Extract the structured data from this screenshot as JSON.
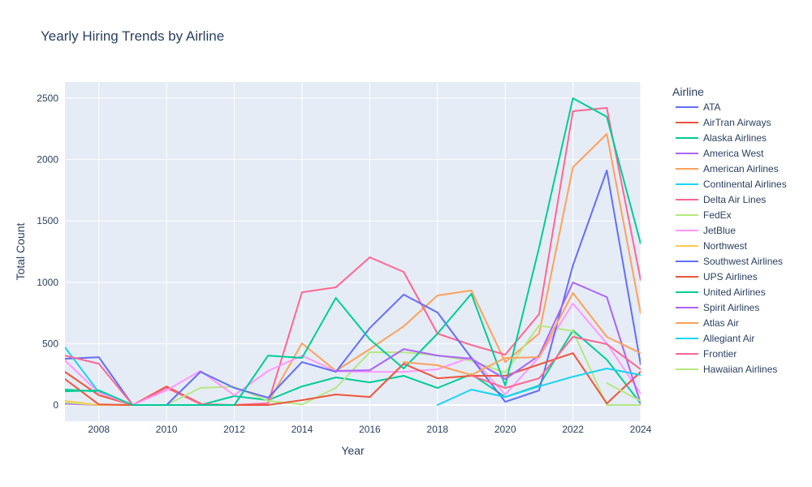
{
  "chart_data": {
    "type": "line",
    "title": "Yearly Hiring Trends by Airline",
    "xlabel": "Year",
    "ylabel": "Total Count",
    "legend_title": "Airline",
    "legend_position": "right",
    "grid": true,
    "xlim": [
      2007,
      2024
    ],
    "ylim": [
      -132,
      2632
    ],
    "x_ticks": [
      2008,
      2010,
      2012,
      2014,
      2016,
      2018,
      2020,
      2022,
      2024
    ],
    "y_ticks": [
      0,
      500,
      1000,
      1500,
      2000,
      2500
    ],
    "x": [
      2007,
      2008,
      2009,
      2010,
      2011,
      2012,
      2013,
      2014,
      2015,
      2016,
      2017,
      2018,
      2019,
      2020,
      2021,
      2022,
      2023,
      2024
    ],
    "series": [
      {
        "name": "ATA",
        "color": "#636efa",
        "values": [
          377,
          390,
          0,
          null,
          null,
          null,
          null,
          null,
          null,
          null,
          null,
          null,
          null,
          null,
          null,
          null,
          null,
          null
        ]
      },
      {
        "name": "AirTran Airways",
        "color": "#EF553B",
        "values": [
          271,
          80,
          0,
          152,
          13,
          null,
          null,
          null,
          null,
          null,
          null,
          null,
          null,
          null,
          null,
          null,
          null,
          null
        ]
      },
      {
        "name": "Alaska Airlines",
        "color": "#00cc96",
        "values": [
          126,
          110,
          0,
          0,
          0,
          73,
          40,
          152,
          225,
          185,
          238,
          139,
          251,
          66,
          159,
          608,
          370,
          13
        ]
      },
      {
        "name": "America West",
        "color": "#ab63fa",
        "values": [
          10,
          0,
          0,
          null,
          null,
          null,
          null,
          null,
          null,
          null,
          null,
          null,
          null,
          null,
          null,
          null,
          null,
          null
        ]
      },
      {
        "name": "American Airlines",
        "color": "#FFA15A",
        "values": [
          null,
          null,
          null,
          null,
          null,
          null,
          20,
          503,
          278,
          456,
          641,
          893,
          933,
          350,
          582,
          1938,
          2209,
          747
        ]
      },
      {
        "name": "Continental Airlines",
        "color": "#19d3f3",
        "values": [
          470,
          105,
          0,
          0,
          null,
          null,
          null,
          null,
          null,
          null,
          null,
          null,
          null,
          null,
          null,
          null,
          null,
          null
        ]
      },
      {
        "name": "Delta Air Lines",
        "color": "#FF6692",
        "values": [
          403,
          337,
          0,
          140,
          8,
          0,
          15,
          919,
          959,
          1204,
          1085,
          582,
          489,
          410,
          741,
          2394,
          2421,
          1018
        ]
      },
      {
        "name": "FedEx",
        "color": "#B6E880",
        "values": [
          20,
          0,
          0,
          0,
          140,
          150,
          33,
          5,
          140,
          430,
          430,
          405,
          360,
          265,
          648,
          602,
          0,
          0
        ]
      },
      {
        "name": "JetBlue",
        "color": "#FF97FF",
        "values": [
          364,
          100,
          0,
          120,
          278,
          80,
          278,
          403,
          275,
          271,
          271,
          291,
          390,
          86,
          390,
          827,
          503,
          93
        ]
      },
      {
        "name": "Northwest",
        "color": "#FECB52",
        "values": [
          33,
          0,
          0,
          null,
          null,
          null,
          null,
          null,
          null,
          null,
          null,
          null,
          null,
          null,
          null,
          null,
          null,
          null
        ]
      },
      {
        "name": "Southwest Airlines",
        "color": "#636efa",
        "values": [
          null,
          null,
          null,
          0,
          271,
          140,
          60,
          350,
          271,
          628,
          900,
          754,
          384,
          26,
          119,
          1138,
          1911,
          330
        ]
      },
      {
        "name": "UPS Airlines",
        "color": "#EF553B",
        "values": [
          212,
          5,
          0,
          0,
          0,
          0,
          0,
          40,
          86,
          66,
          337,
          218,
          238,
          238,
          331,
          423,
          13,
          271
        ]
      },
      {
        "name": "United Airlines",
        "color": "#00cc96",
        "values": [
          112,
          120,
          0,
          0,
          0,
          0,
          403,
          384,
          873,
          535,
          298,
          582,
          906,
          159,
          1283,
          2500,
          2348,
          1316
        ]
      },
      {
        "name": "Spirit Airlines",
        "color": "#ab63fa",
        "values": [
          null,
          null,
          null,
          null,
          null,
          null,
          null,
          null,
          278,
          284,
          456,
          403,
          377,
          212,
          403,
          999,
          880,
          13
        ]
      },
      {
        "name": "Atlas Air",
        "color": "#FFA15A",
        "values": [
          null,
          null,
          null,
          null,
          null,
          null,
          null,
          null,
          null,
          null,
          350,
          324,
          245,
          384,
          390,
          913,
          556,
          423
        ]
      },
      {
        "name": "Allegiant Air",
        "color": "#19d3f3",
        "values": [
          null,
          null,
          null,
          null,
          null,
          null,
          null,
          null,
          null,
          null,
          null,
          0,
          126,
          66,
          152,
          231,
          298,
          245
        ]
      },
      {
        "name": "Frontier",
        "color": "#FF6692",
        "values": [
          null,
          null,
          null,
          null,
          null,
          null,
          null,
          null,
          null,
          null,
          null,
          null,
          240,
          139,
          218,
          556,
          496,
          291
        ]
      },
      {
        "name": "Hawaiian Airlines",
        "color": "#B6E880",
        "values": [
          null,
          null,
          null,
          null,
          null,
          null,
          null,
          null,
          null,
          null,
          null,
          null,
          null,
          null,
          null,
          null,
          179,
          33
        ]
      }
    ]
  }
}
